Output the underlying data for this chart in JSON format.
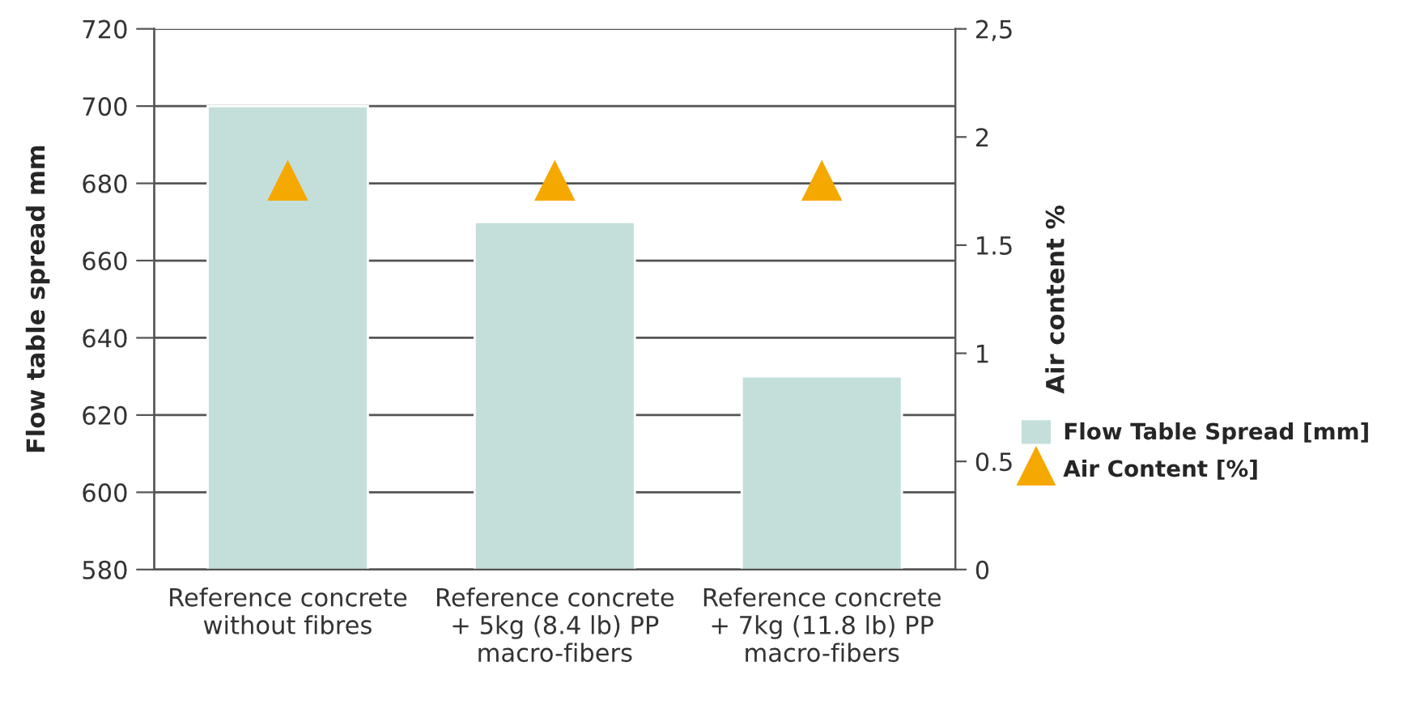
{
  "chart_data": {
    "type": "bar",
    "ylabel": "Flow table spread mm",
    "y2label": "Air content %",
    "categories": [
      "Reference concrete\nwithout fibres",
      "Reference concrete\n+ 5kg (8.4 lb) PP\nmacro-fibers",
      "Reference concrete\n+ 7kg (11.8 lb) PP\nmacro-fibers"
    ],
    "series": [
      {
        "name": "Flow Table Spread [mm]",
        "color": "#c4dfda",
        "values": [
          700,
          670,
          630
        ]
      },
      {
        "name": "Air Content [%]",
        "type": "scatter",
        "axis": "y2",
        "marker": "triangle",
        "color": "#f5a800",
        "values": [
          1.8,
          1.8,
          1.8
        ]
      }
    ],
    "ylim": [
      580,
      720
    ],
    "yticks": [
      580,
      600,
      620,
      640,
      660,
      680,
      700,
      720
    ],
    "y2lim": [
      0,
      2.5
    ],
    "y2ticks": [
      0,
      0.5,
      1,
      1.5,
      2,
      {
        "value": 2.5,
        "label": "2,5"
      }
    ],
    "grid": "y",
    "legend": "right"
  }
}
